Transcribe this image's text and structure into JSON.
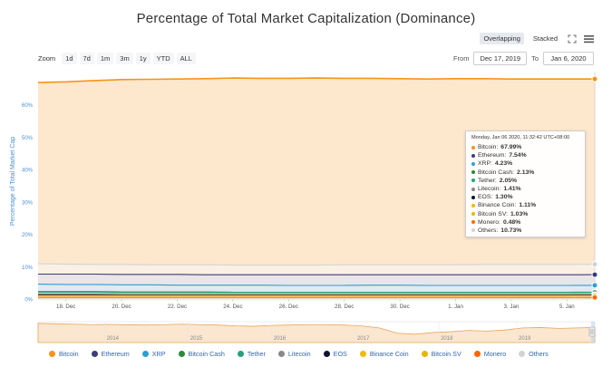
{
  "header": {
    "title": "Percentage of Total Market Capitalization (Dominance)",
    "overlapping_label": "Overlapping",
    "stacked_label": "Stacked",
    "fullscreen_icon": "expand-icon",
    "menu_icon": "hamburger-menu-icon"
  },
  "zoom": {
    "label": "Zoom",
    "buttons": [
      "1d",
      "7d",
      "1m",
      "3m",
      "1y",
      "YTD",
      "ALL"
    ]
  },
  "range": {
    "from_label": "From",
    "from_value": "Dec 17, 2019",
    "to_label": "To",
    "to_value": "Jan 6, 2020"
  },
  "tooltip": {
    "header": "Monday, Jan 06 2020, 11:32:42 UTC+08:00",
    "rows": [
      {
        "name": "Bitcoin",
        "value": "67.99%",
        "color": "#f7931a"
      },
      {
        "name": "Ethereum",
        "value": "7.54%",
        "color": "#3c3c78"
      },
      {
        "name": "XRP",
        "value": "4.23%",
        "color": "#2a9fd6"
      },
      {
        "name": "Bitcoin Cash",
        "value": "2.13%",
        "color": "#2c8a3a"
      },
      {
        "name": "Tether",
        "value": "2.05%",
        "color": "#26a17b"
      },
      {
        "name": "Litecoin",
        "value": "1.41%",
        "color": "#888888"
      },
      {
        "name": "EOS",
        "value": "1.30%",
        "color": "#111133"
      },
      {
        "name": "Binance Coin",
        "value": "1.11%",
        "color": "#f0b90b"
      },
      {
        "name": "Bitcoin SV",
        "value": "1.03%",
        "color": "#eab300"
      },
      {
        "name": "Monero",
        "value": "0.48%",
        "color": "#ff6600"
      },
      {
        "name": "Others",
        "value": "10.73%",
        "color": "#d3d3d3"
      }
    ]
  },
  "chart_data": {
    "type": "area",
    "title": "Percentage of Total Market Capitalization (Dominance)",
    "ylabel": "Percentage of Total Market Cap",
    "ylim": [
      0,
      70
    ],
    "yticks": [
      "0%",
      "10%",
      "20%",
      "30%",
      "40%",
      "50%",
      "60%"
    ],
    "xlim": [
      "Dec 17, 2019",
      "Jan 6, 2020"
    ],
    "xticks": [
      "18. Dec",
      "20. Dec",
      "22. Dec",
      "24. Dec",
      "26. Dec",
      "28. Dec",
      "30. Dec",
      "1. Jan",
      "3. Jan",
      "5. Jan"
    ],
    "grid": true,
    "legend_position": "bottom",
    "navigator_labels": [
      "2014",
      "2015",
      "2016",
      "2017",
      "2018",
      "2019"
    ],
    "x": [
      "Dec 17",
      "Dec 18",
      "Dec 19",
      "Dec 20",
      "Dec 21",
      "Dec 22",
      "Dec 23",
      "Dec 24",
      "Dec 25",
      "Dec 26",
      "Dec 27",
      "Dec 28",
      "Dec 29",
      "Dec 30",
      "Dec 31",
      "Jan 1",
      "Jan 2",
      "Jan 3",
      "Jan 4",
      "Jan 5",
      "Jan 6"
    ],
    "series": [
      {
        "name": "Bitcoin",
        "color": "#f7931a",
        "values": [
          66.9,
          67.1,
          67.5,
          67.8,
          67.9,
          68.0,
          68.1,
          68.3,
          68.2,
          68.2,
          68.3,
          68.2,
          68.2,
          68.1,
          68.0,
          68.1,
          68.1,
          68.0,
          68.0,
          68.0,
          67.99
        ]
      },
      {
        "name": "Ethereum",
        "color": "#3c3c78",
        "values": [
          7.7,
          7.7,
          7.7,
          7.6,
          7.6,
          7.6,
          7.5,
          7.5,
          7.5,
          7.5,
          7.5,
          7.5,
          7.5,
          7.5,
          7.5,
          7.5,
          7.5,
          7.5,
          7.5,
          7.5,
          7.54
        ]
      },
      {
        "name": "XRP",
        "color": "#2a9fd6",
        "values": [
          4.6,
          4.5,
          4.5,
          4.4,
          4.4,
          4.3,
          4.3,
          4.3,
          4.3,
          4.2,
          4.2,
          4.2,
          4.3,
          4.3,
          4.2,
          4.2,
          4.2,
          4.2,
          4.2,
          4.2,
          4.23
        ]
      },
      {
        "name": "Bitcoin Cash",
        "color": "#2c8a3a",
        "values": [
          2.3,
          2.3,
          2.3,
          2.2,
          2.2,
          2.2,
          2.2,
          2.1,
          2.1,
          2.1,
          2.1,
          2.1,
          2.1,
          2.1,
          2.1,
          2.1,
          2.1,
          2.1,
          2.1,
          2.1,
          2.13
        ]
      },
      {
        "name": "Tether",
        "color": "#26a17b",
        "values": [
          2.1,
          2.1,
          2.1,
          2.0,
          2.0,
          2.0,
          2.0,
          2.0,
          2.0,
          2.0,
          2.0,
          2.0,
          2.0,
          2.0,
          2.0,
          2.0,
          2.0,
          2.0,
          2.0,
          2.0,
          2.05
        ]
      },
      {
        "name": "Litecoin",
        "color": "#888888",
        "values": [
          1.5,
          1.5,
          1.5,
          1.4,
          1.4,
          1.4,
          1.4,
          1.4,
          1.4,
          1.4,
          1.4,
          1.4,
          1.4,
          1.4,
          1.4,
          1.4,
          1.4,
          1.4,
          1.4,
          1.4,
          1.41
        ]
      },
      {
        "name": "EOS",
        "color": "#111133",
        "values": [
          1.4,
          1.4,
          1.4,
          1.3,
          1.3,
          1.3,
          1.3,
          1.3,
          1.3,
          1.3,
          1.3,
          1.3,
          1.3,
          1.3,
          1.3,
          1.3,
          1.3,
          1.3,
          1.3,
          1.3,
          1.3
        ]
      },
      {
        "name": "Binance Coin",
        "color": "#f0b90b",
        "values": [
          1.1,
          1.1,
          1.1,
          1.1,
          1.1,
          1.1,
          1.1,
          1.1,
          1.1,
          1.1,
          1.1,
          1.1,
          1.1,
          1.1,
          1.1,
          1.1,
          1.1,
          1.1,
          1.1,
          1.1,
          1.11
        ]
      },
      {
        "name": "Bitcoin SV",
        "color": "#eab300",
        "values": [
          1.0,
          1.0,
          1.0,
          1.0,
          1.0,
          1.0,
          1.0,
          1.0,
          1.0,
          1.0,
          1.0,
          1.0,
          1.0,
          1.0,
          1.0,
          1.0,
          1.0,
          1.0,
          1.0,
          1.0,
          1.03
        ]
      },
      {
        "name": "Monero",
        "color": "#ff6600",
        "values": [
          0.5,
          0.5,
          0.5,
          0.5,
          0.5,
          0.5,
          0.5,
          0.5,
          0.5,
          0.5,
          0.5,
          0.5,
          0.5,
          0.5,
          0.5,
          0.5,
          0.5,
          0.5,
          0.5,
          0.5,
          0.48
        ]
      },
      {
        "name": "Others",
        "color": "#d3d3d3",
        "values": [
          10.9,
          10.8,
          10.7,
          10.7,
          10.6,
          10.6,
          10.6,
          10.5,
          10.5,
          10.5,
          10.5,
          10.6,
          10.6,
          10.6,
          10.6,
          10.6,
          10.7,
          10.7,
          10.7,
          10.7,
          10.73
        ]
      }
    ]
  }
}
